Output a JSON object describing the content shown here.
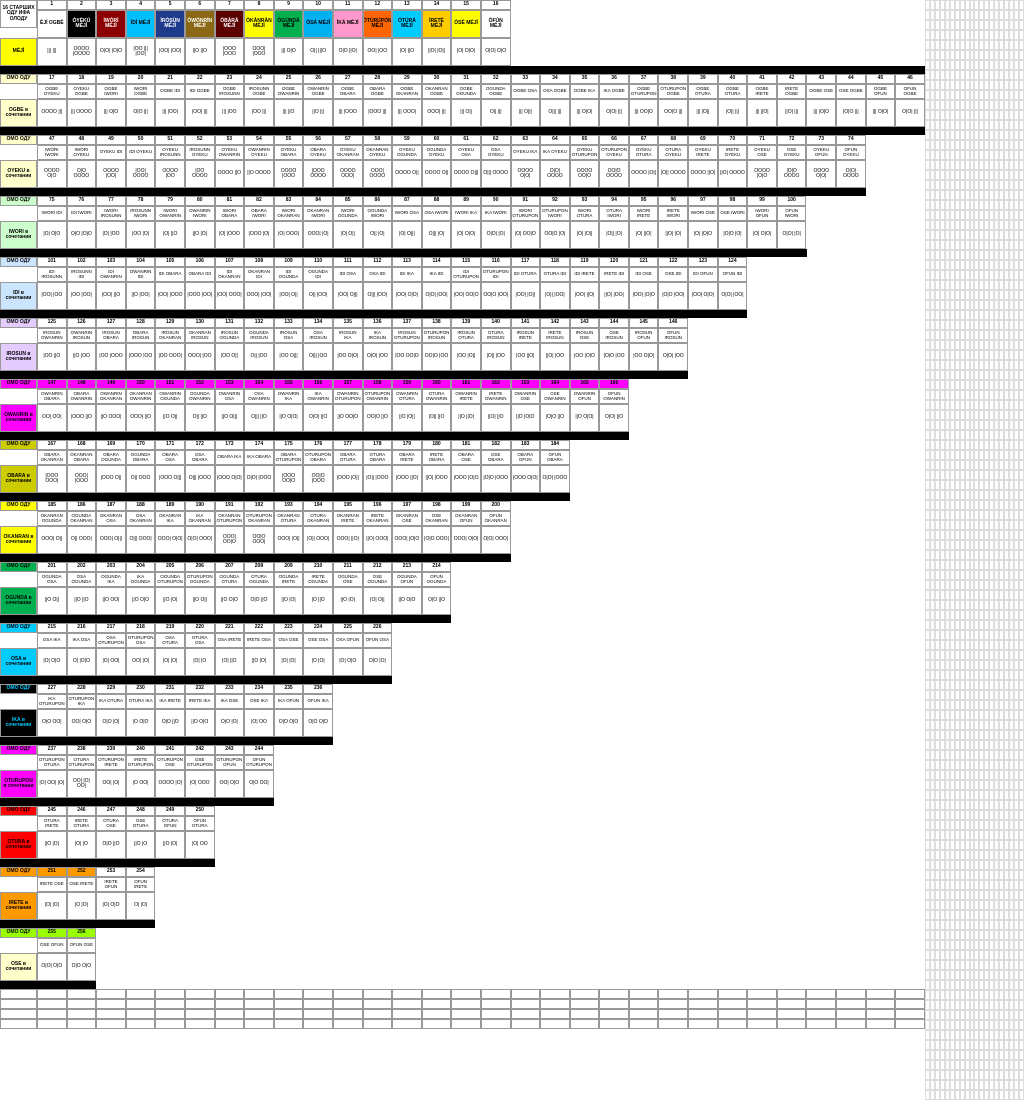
{
  "colors": {
    "c1": "#000000",
    "c2": "#808080",
    "c3": "#8b0000",
    "c4": "#00bfff",
    "c5": "#1e3a8a",
    "c6": "#d4a017",
    "c7": "#8b1a1a",
    "c8": "#ffff00",
    "c9": "#00b050",
    "c10": "#00b0f0",
    "c11": "#ff99cc",
    "c12": "#00ccff",
    "c13": "#ff6600",
    "c14": "#ffff66",
    "c15": "#ffff00",
    "c16": "#ffffff",
    "lightyellow": "#ffffcc",
    "lightgreen": "#ccffcc",
    "lightblue": "#cce5ff",
    "lightpurple": "#e5ccff",
    "magenta": "#ff00ff",
    "darkyellow": "#cccc00",
    "yellow": "#ffff00",
    "green": "#00b050",
    "cyan": "#00ccff",
    "black": "#000000",
    "red": "#ff0000",
    "orange": "#ff9900",
    "lime": "#99ff00"
  },
  "row0": {
    "label": "16 СТАРШИХ ОДУ ИФА ОЛОДУ",
    "cells": [
      {
        "n": "1",
        "h": "ÈJÍ OGBÈ",
        "bg": "#ffffff",
        "fg": "#000"
      },
      {
        "n": "2",
        "h": "ÒYÈKÚ MÉJÌ",
        "bg": "#000000",
        "fg": "#fff"
      },
      {
        "n": "3",
        "h": "ÌWÒRÌ MÉJÌ",
        "bg": "#8b0000",
        "fg": "#fff"
      },
      {
        "n": "4",
        "h": "ÌDÍ MÉJÌ",
        "bg": "#00bfff",
        "fg": "#000"
      },
      {
        "n": "5",
        "h": "ÌRÒSÙN MÉJÌ",
        "bg": "#1e3a8a",
        "fg": "#fff"
      },
      {
        "n": "6",
        "h": "ÒWÓNRÍN MÉJÌ",
        "bg": "#8b6914",
        "fg": "#fff"
      },
      {
        "n": "7",
        "h": "ÒBÀRÀ MÉJÌ",
        "bg": "#5c0000",
        "fg": "#fff"
      },
      {
        "n": "8",
        "h": "ÒKÀNRÀN MÉJÌ",
        "bg": "#ffff00",
        "fg": "#000"
      },
      {
        "n": "9",
        "h": "ÒGÚNDÁ MÉJÌ",
        "bg": "#00b050",
        "fg": "#000"
      },
      {
        "n": "10",
        "h": "ÒSÁ MÉJÌ",
        "bg": "#00b0f0",
        "fg": "#000"
      },
      {
        "n": "11",
        "h": "ÌKÁ MÉJÌ",
        "bg": "#ff99cc",
        "fg": "#000"
      },
      {
        "n": "12",
        "h": "ÒTÚRÚPÒN MÉJÌ",
        "bg": "#ff6600",
        "fg": "#000"
      },
      {
        "n": "13",
        "h": "ÒTÚRÁ MÉJÌ",
        "bg": "#00ccff",
        "fg": "#000"
      },
      {
        "n": "14",
        "h": "ÌRETÈ MÉJÌ",
        "bg": "#ffcc00",
        "fg": "#000"
      },
      {
        "n": "15",
        "h": "ÒSÉ MÉJÌ",
        "bg": "#ffff00",
        "fg": "#000"
      },
      {
        "n": "16",
        "h": "ÒFÚN MÉJÌ",
        "bg": "#ffffff",
        "fg": "#000"
      }
    ],
    "meji": "MÉJÌ",
    "syms": [
      "||| |||",
      "OOOO |OOOO",
      "O|O| |O|O",
      "|OO ||| |OO|",
      "|OO| |OO|",
      "||O ||O",
      "|OOO |OOO",
      "OOO| |OOO",
      "||| O|O",
      "O|| |||O",
      "O|O ||O|",
      "OO| |OO",
      "|O| ||O",
      "||O| |O||",
      "|O| O|O|",
      "O|O| O|O"
    ]
  },
  "sections": [
    {
      "label": "OGBE в сочетании",
      "labelBg": "#ffffcc",
      "omoBg": "#ffffcc",
      "start": 17,
      "count": 30,
      "names": [
        "OGBE OYEKU",
        "OYEKU OGBE",
        "OGBE IWORI",
        "IWORI OGBE",
        "OGBE IDI",
        "IDI OGBE",
        "OGBE IROSUNN",
        "IROSUNN OGBE",
        "OGBE OWANRIN",
        "OWANRIN OGBE",
        "OGBE OBARA",
        "OBARA OGBE",
        "OGBE OKANRAN",
        "OKANRAN OGBE",
        "OGBE OGUNDA",
        "OGUNDA OGBE",
        "OGBE OSA",
        "OSA OGBE",
        "OGBE IKA",
        "IKA OGBE",
        "OGBE OTURUPON",
        "OTURUPON OGBE",
        "OGBE OTURA",
        "OGBE OTURA",
        "OGBE IRETE",
        "IRETE OGBE",
        "OGBE OSE",
        "OSE OGBE",
        "OGBE OFUN",
        "OFUN OGBE"
      ],
      "syms": [
        "OOOO |||",
        "||| OOOO",
        "||| O|O",
        "O|O |||",
        "||| |OO|",
        "|OO| |||",
        "||| |OO",
        "|OO |||",
        "||| ||O",
        "||O |||",
        "||| |OOO",
        "|OOO |||",
        "||| OOO|",
        "OOO| |||",
        "||| O||",
        "O|| |||",
        "||| O|||",
        "O||| |||",
        "||| O|O|",
        "O|O| |||",
        "||| OO|O",
        "OO|O |||",
        "||| |O||",
        "|O|| |||",
        "||| ||O|",
        "||O| |||",
        "||| |O|O",
        "|O|O |||",
        "||| O|O|",
        "O|O| |||"
      ]
    },
    {
      "label": "OYEKU в сочетании",
      "labelBg": "#ffffcc",
      "omoBg": "#ffffcc",
      "start": 47,
      "count": 28,
      "names": [
        "IWORI IWORI",
        "IWORI OYEKU",
        "OYEKU IDI",
        "IDI OYEKU",
        "OYEKU IROSUNN",
        "IROSUNN OYEKU",
        "OYEKU OWANRIN",
        "OWANRIN OYEKU",
        "OYEKU OBARA",
        "OBARA OYEKU",
        "OYEKU OKANRAN",
        "OKANRAN OYEKU",
        "OYEKU OGUNDA",
        "OGUNDA OYEKU",
        "OYEKU OSA",
        "OSA OYEKU",
        "OYEKU IKA",
        "IKA OYEKU",
        "OYEKU OTURUPON",
        "OTURUPON OYEKU",
        "OYEKU OTURA",
        "OTURA OYEKU",
        "OYEKU IRETE",
        "IRETE OYEKU",
        "OYEKU OSE",
        "OSE OYEKU",
        "OYEKU OFUN",
        "OFUN OYEKU"
      ],
      "syms": [
        "OOOO O|O",
        "O|O OOOO",
        "OOOO |OO|",
        "|OO| OOOO",
        "OOOO |OO",
        "|OO OOOO",
        "OOOO ||O",
        "||O OOOO",
        "OOOO |OOO",
        "|OOO OOOO",
        "OOOO OOO|",
        "OOO| OOOO",
        "OOOO O||",
        "OOOO O||",
        "OOOO O|||",
        "O||| OOOO",
        "OOOO O|O|",
        "O|O| OOOO",
        "OOOO OO|O",
        "OO|O OOOO",
        "OOOO |O||",
        "|O|| OOOO",
        "OOOO ||O|",
        "||O| OOOO",
        "OOOO |O|O",
        "|O|O OOOO",
        "OOOO O|O|",
        "O|O| OOOO"
      ]
    },
    {
      "label": "IWORI в сочетании",
      "labelBg": "#ccffcc",
      "omoBg": "#ccffcc",
      "start": 75,
      "count": 26,
      "names": [
        "IWORI IDI",
        "IDI IWORI",
        "IWORI IROSUNN",
        "IROSUNN IWORI",
        "IWORI OWANRIN",
        "OWANRIN IWORI",
        "IWORI OBARA",
        "OBARA IWORI",
        "IWORI OKANRAN",
        "OKANRAN IWORI",
        "IWORI OGUNDA",
        "OGUNDA IWORI",
        "IWORI OSA",
        "OSA IWORI",
        "IWORI IKA",
        "IKA IWORI",
        "IWORI OTURUPON",
        "OTURUPON IWORI",
        "IWORI OTURA",
        "OTURA IWORI",
        "IWORI IRETE",
        "IRETE IWORI",
        "IWORI OSE",
        "OSE IWORI",
        "IWORI OFUN",
        "OFUN IWORI"
      ],
      "syms": [
        "|O| O|O",
        "O|O |O|O",
        "|O| |OO",
        "|OO |O|",
        "|O| ||O",
        "||O |O|",
        "|O| |OOO",
        "|OOO |O|",
        "|O| OOO|",
        "OOO| |O|",
        "|O| O||",
        "O|| |O|",
        "|O| O|||",
        "O||| |O|",
        "|O| O|O|",
        "O|O| |O|",
        "|O| OO|O",
        "OO|O |O|",
        "|O| |O||",
        "|O|| |O|",
        "|O| ||O|",
        "||O| |O|",
        "|O| |O|O",
        "|O|O |O|",
        "|O| O|O|",
        "O|O| |O|"
      ]
    },
    {
      "label": "IDI в сочетании",
      "labelBg": "#cce5ff",
      "omoBg": "#cce5ff",
      "start": 101,
      "count": 24,
      "names": [
        "IDI IROSUNN",
        "IROSUNN IDI",
        "IDI OWANRIN",
        "OWANRIN IDI",
        "IDI OBARA",
        "OBARA IDI",
        "IDI OKANRAN",
        "OKANRAN IDI",
        "IDI OGUNDA",
        "OGUNDA IDI",
        "IDI OSA",
        "OSA IDI",
        "IDI IKA",
        "IKA IDI",
        "IDI OTURUPON",
        "OTURUPON IDI",
        "IDI OTURA",
        "OTURA IDI",
        "IDI IRETE",
        "IRETE IDI",
        "IDI OSE",
        "OSE IDI",
        "IDI OFUN",
        "OFUN IDI"
      ],
      "syms": [
        "|OO| |OO",
        "|OO |OO|",
        "|OO| ||O",
        "||O |OO|",
        "|OO| |OOO",
        "|OOO |OO|",
        "|OO| OOO|",
        "OOO| |OO|",
        "|OO| O||",
        "O|| |OO|",
        "|OO| O|||",
        "O||| |OO|",
        "|OO| O|O|",
        "O|O| |OO|",
        "|OO| OO|O",
        "OO|O |OO|",
        "|OO| |O||",
        "|O|| |OO|",
        "|OO| ||O|",
        "||O| |OO|",
        "|OO| |O|O",
        "|O|O |OO|",
        "|OO| O|O|",
        "O|O| |OO|"
      ]
    },
    {
      "label": "IROSUN в сочетании",
      "labelBg": "#e5ccff",
      "omoBg": "#e5ccff",
      "start": 125,
      "count": 22,
      "names": [
        "IROSUN OWANRIN",
        "OWANRIN IROSUN",
        "IROSUN OBARA",
        "OBARA IROSUN",
        "IROSUN OKANRAN",
        "OKANRAN IROSUN",
        "IROSUN OGUNDA",
        "OGUNDA IROSUN",
        "IROSUN OSA",
        "OSA IROSUN",
        "IROSUN IKA",
        "IKA IROSUN",
        "IROSUN OTURUPON",
        "OTURUPON IROSUN",
        "IROSUN OTURA",
        "OTURA IROSUN",
        "IROSUN IRETE",
        "IRETE IROSUN",
        "IROSUN OSE",
        "OSE IROSUN",
        "IROSUN OFUN",
        "OFUN IROSUN"
      ],
      "syms": [
        "|OO ||O",
        "||O |OO",
        "|OO |OOO",
        "|OOO |OO",
        "|OO OOO|",
        "OOO| |OO",
        "|OO O||",
        "O|| |OO",
        "|OO O|||",
        "O||| |OO",
        "|OO O|O|",
        "O|O| |OO",
        "|OO OO|O",
        "OO|O |OO",
        "|OO |O||",
        "|O|| |OO",
        "|OO ||O|",
        "||O| |OO",
        "|OO |O|O",
        "|O|O |OO",
        "|OO O|O|",
        "O|O| |OO"
      ]
    },
    {
      "label": "OWANRIN в сочетании",
      "labelBg": "#ff00ff",
      "omoBg": "#ff00ff",
      "start": 147,
      "count": 20,
      "names": [
        "OWANRIN OBARA",
        "OBARA OWANRIN",
        "OWANRIN OKANRAN",
        "OKANRAN OWANRIN",
        "OWANRIN OGUNDA",
        "OGUNDA OWANRIN",
        "OWANRIN OSA",
        "OSA OWANRIN",
        "OWANRIN IKA",
        "IKA OWANRIN",
        "OWANRIN OTURUPON",
        "OTURUPON OWANRIN",
        "OWANRIN OTURA",
        "OTURA OWANRIN",
        "OWANRIN IRETE",
        "IRETE OWANRIN",
        "OWANRIN OSE",
        "OSE OWANRIN",
        "OWANRIN OFUN",
        "OFUN OWANRIN"
      ],
      "syms": [
        "OO| OO|",
        "|OOO ||O",
        "||O OOO|",
        "OOO| ||O",
        "||O O||",
        "O|| ||O",
        "||O O|||",
        "O||| ||O",
        "||O O|O|",
        "O|O| ||O",
        "||O OO|O",
        "OO|O ||O",
        "||O |O||",
        "|O|| ||O",
        "||O ||O|",
        "||O| ||O",
        "||O |O|O",
        "|O|O ||O",
        "||O O|O|",
        "O|O| ||O"
      ]
    },
    {
      "label": "OBARA в сочетании",
      "labelBg": "#cccc00",
      "omoBg": "#cccc00",
      "start": 167,
      "count": 18,
      "names": [
        "OBARA OKANRAN",
        "OKANRAN OBARA",
        "OBARA OGUNDA",
        "OGUNDA OBARA",
        "OBARA OSA",
        "OSA OBARA",
        "OBARA IKA",
        "IKA OBARA",
        "OBARA OTURUPON",
        "OTURUPON OBARA",
        "OBARA OTURA",
        "OTURA OBARA",
        "OBARA IRETE",
        "IRETE OBARA",
        "OBARA OSE",
        "OSE OBARA",
        "OBARA OFUN",
        "OFUN OBARA"
      ],
      "syms": [
        "|OOO OOO|",
        "OOO| |OOO",
        "|OOO O||",
        "O|| OOO",
        "|OOO O|||",
        "O||| |OOO",
        "|OOO O|O|",
        "O|O| |OOO",
        "|OOO OO|O",
        "OO|O |OOO",
        "|OOO |O||",
        "|O|| |OOO",
        "|OOO ||O|",
        "||O| |OOO",
        "|OOO |O|O",
        "|O|O |OOO",
        "|OOO O|O|",
        "O|O| |OOO"
      ]
    },
    {
      "label": "OKANRAN в сочетании",
      "labelBg": "#ffff00",
      "omoBg": "#ffff00",
      "start": 185,
      "count": 16,
      "names": [
        "OKANRAN OGUNDA",
        "OGUNDA OKANRAN",
        "OKANRAN OSA",
        "OSA OKANRAN",
        "OKANRAN IKA",
        "IKA OKANRAN",
        "OKANRAN OTURUPON",
        "OTURUPON OKANRAN",
        "OKANRAN OTURA",
        "OTURA OKANRAN",
        "OKANRAN IRETE",
        "IRETE OKANRAN",
        "OKANRAN OSE",
        "OSE OKANRAN",
        "OKANRAN OFUN",
        "OFUN OKANRAN"
      ],
      "syms": [
        "OOO| O||",
        "O|| OOO|",
        "OOO| O|||",
        "O||| OOO|",
        "OOO| O|O|",
        "O|O| OOO|",
        "OOO| OO|O",
        "OO|O OOO|",
        "OOO| |O||",
        "|O|| OOO|",
        "OOO| ||O|",
        "||O| OOO|",
        "OOO| |O|O",
        "|O|O OOO|",
        "OOO| O|O|",
        "O|O| OOO|"
      ]
    },
    {
      "label": "OGUNDA в сочетании",
      "labelBg": "#00b050",
      "omoBg": "#00b050",
      "start": 201,
      "count": 14,
      "names": [
        "OGUNDA OSA",
        "OSA OGUNDA",
        "OGUNDA IKA",
        "IKA OGUNDA",
        "OGUNDA OTURUPON",
        "OTURUPON OGUNDA",
        "OGUNDA OTURA",
        "OTURA OGUNDA",
        "OGUNDA IRETE",
        "IRETE OGUNDA",
        "OGUNDA OSE",
        "OSE OGUNDA",
        "OGUNDA OFUN",
        "OFUN OGUNDA"
      ],
      "syms": [
        "||O O||",
        "||O ||O",
        "||O OO|",
        "||O O|O",
        "||O |O|",
        "||O O||",
        "||O O|O",
        "O|O ||O",
        "||O |O|",
        "|O ||O",
        "||O |O|",
        "|O| O||",
        "||O O|O",
        "O|O ||O"
      ]
    },
    {
      "label": "OSA в сочетании",
      "labelBg": "#00ccff",
      "omoBg": "#00ccff",
      "start": 215,
      "count": 12,
      "names": [
        "OSA IKA",
        "IKA OSA",
        "OSA OTURUPON",
        "OTURUPON OSA",
        "OSA OTURA",
        "OTURA OSA",
        "OSA IRETE",
        "IRETE OSA",
        "OSA OSE",
        "OSE OSA",
        "OSA OFUN",
        "OFUN OSA"
      ],
      "syms": [
        "|O| O|O",
        "O| |O|O",
        "|O| OO|",
        "OO| |O|",
        "|O| |O|",
        "|O| |O",
        "|O| ||O",
        "||O |O|",
        "|O| |O|",
        "|O |O|",
        "|O| O|O",
        "O|O |O|"
      ]
    },
    {
      "label": "IKA в сочетании",
      "labelBg": "#000000",
      "omoBg": "#000000",
      "labelFg": "#00ccff",
      "omoFg": "#00ccff",
      "start": 227,
      "count": 10,
      "names": [
        "IKA OTURUPON",
        "OTURUPON IKA",
        "IKA OTURA",
        "OTURA IKA",
        "IKA IRETE",
        "IRETE IKA",
        "IKA OSE",
        "OSE IKA",
        "IKA OFUN",
        "OFUN IKA"
      ],
      "syms": [
        "O|O OO|",
        "OO| O|O",
        "O|O |O|",
        "|O O|O",
        "O|O ||O",
        "||O O|O",
        "O|O |O|",
        "|O| OO",
        "O|O O|O",
        "O|O O|O"
      ]
    },
    {
      "label": "OTURUPON в сочетании",
      "labelBg": "#ff00ff",
      "omoBg": "#ff00ff",
      "start": 237,
      "count": 8,
      "names": [
        "OTURUPON OTURA",
        "OTURA OTURUPON",
        "OTURUPON IRETE",
        "IRETE OTURUPON",
        "OTURUPON OSE",
        "OSE OTURUPON",
        "OTURUPON OFUN",
        "OFUN OTURUPON"
      ],
      "syms": [
        "|O| OO| |O|",
        "OO| |O| OO|",
        "OO| |O|",
        "|O OO|",
        "OOOO |O|",
        "|O| OOO",
        "OO| O|O",
        "O|O OO|"
      ]
    },
    {
      "label": "OTURA в сочетании",
      "labelBg": "#ff0000",
      "omoBg": "#ff0000",
      "start": 245,
      "count": 6,
      "names": [
        "OTURA IRETE",
        "IRETE OTURA",
        "OTURA OSE",
        "OSE OTURA",
        "OTURA OFUN",
        "OFUN OTURA"
      ],
      "syms": [
        "||O |O|",
        "|O| |O",
        "O|O ||O",
        "||O |O",
        "||O |O|",
        "|O| OO"
      ]
    },
    {
      "label": "IRETE в сочетании",
      "labelBg": "#ff9900",
      "omoBg": "#ff9900",
      "start": 251,
      "count": 4,
      "names": [
        "IRETE OSE",
        "OSE IRETE",
        "IRETE OFUN",
        "OFUN IRETE"
      ],
      "syms": [
        "|O| |O|",
        "|O |O|",
        "|O| O|O",
        "O| |O|"
      ]
    },
    {
      "label": "OSE в сочетании",
      "labelBg": "#ffffcc",
      "omoBg": "#99ff00",
      "start": 255,
      "count": 2,
      "names": [
        "OSE OFUN",
        "OFUN OSE"
      ],
      "syms": [
        "O|O| O|O",
        "O|O O|O"
      ]
    }
  ],
  "omoLabel": "ОМО ОДУ",
  "omoLabel2": "в ОМО ОДУ"
}
